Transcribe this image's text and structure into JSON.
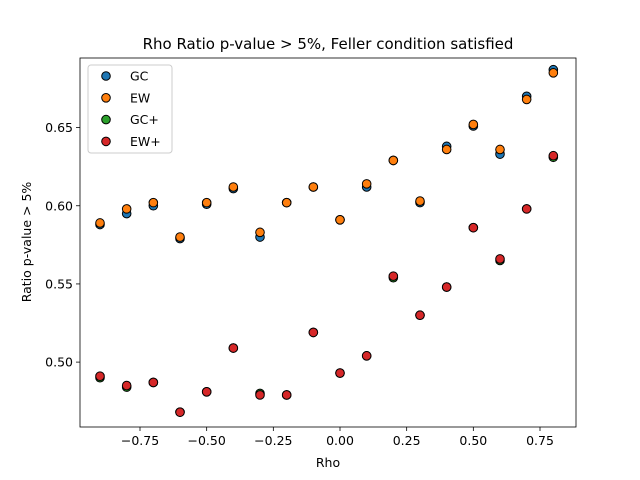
{
  "chart_data": {
    "type": "scatter",
    "title": "Rho Ratio p-value > 5%, Feller condition satisfied",
    "xlabel": "Rho",
    "ylabel": "Ratio p-value > 5%",
    "xlim": [
      -0.975,
      0.885
    ],
    "ylim": [
      0.4585,
      0.6945
    ],
    "xticks": [
      -0.75,
      -0.5,
      -0.25,
      0.0,
      0.25,
      0.5,
      0.75
    ],
    "xtick_labels": [
      "−0.75",
      "−0.50",
      "−0.25",
      "0.00",
      "0.25",
      "0.50",
      "0.75"
    ],
    "yticks": [
      0.5,
      0.55,
      0.6,
      0.65
    ],
    "ytick_labels": [
      "0.50",
      "0.55",
      "0.60",
      "0.65"
    ],
    "grid": false,
    "legend_position": "top-left",
    "x": [
      -0.9,
      -0.8,
      -0.7,
      -0.6,
      -0.5,
      -0.4,
      -0.3,
      -0.2,
      -0.1,
      0.0,
      0.1,
      0.2,
      0.3,
      0.4,
      0.5,
      0.6,
      0.7,
      0.8
    ],
    "series": [
      {
        "name": "GC",
        "color": "#1f77b4",
        "values": [
          0.588,
          0.595,
          0.6,
          0.579,
          0.601,
          0.611,
          0.58,
          0.602,
          0.612,
          0.591,
          0.612,
          0.629,
          0.602,
          0.638,
          0.651,
          0.633,
          0.67,
          0.687
        ]
      },
      {
        "name": "EW",
        "color": "#ff7f0e",
        "values": [
          0.589,
          0.598,
          0.602,
          0.58,
          0.602,
          0.612,
          0.583,
          0.602,
          0.612,
          0.591,
          0.614,
          0.629,
          0.603,
          0.636,
          0.652,
          0.636,
          0.668,
          0.685
        ]
      },
      {
        "name": "GC+",
        "color": "#2ca02c",
        "values": [
          0.49,
          0.484,
          0.487,
          0.468,
          0.481,
          0.509,
          0.48,
          0.479,
          0.519,
          0.493,
          0.504,
          0.554,
          0.53,
          0.548,
          0.586,
          0.565,
          0.598,
          0.631
        ]
      },
      {
        "name": "EW+",
        "color": "#d62728",
        "values": [
          0.491,
          0.485,
          0.487,
          0.468,
          0.481,
          0.509,
          0.479,
          0.479,
          0.519,
          0.493,
          0.504,
          0.555,
          0.53,
          0.548,
          0.586,
          0.566,
          0.598,
          0.632
        ]
      }
    ]
  }
}
